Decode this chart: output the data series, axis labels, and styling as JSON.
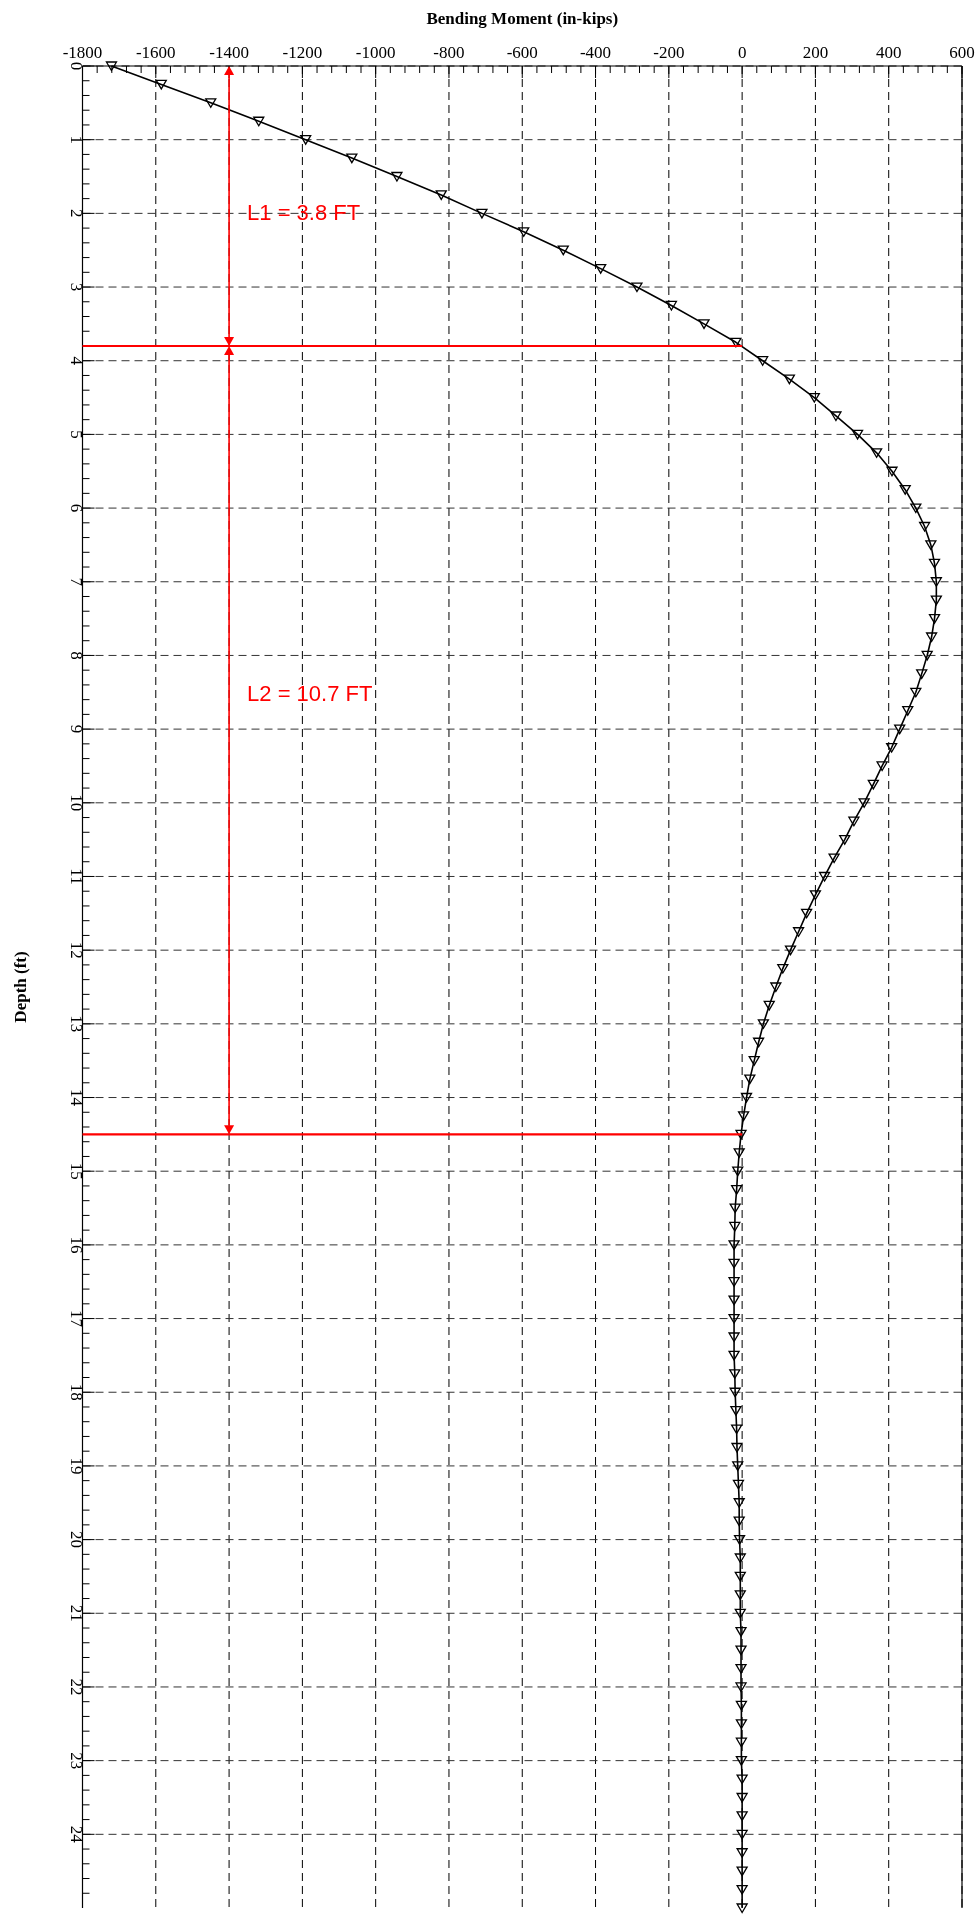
{
  "chart_data": {
    "type": "line",
    "xlabel": "Bending Moment (in-kips)",
    "ylabel": "Depth (ft)",
    "xlim": [
      -1800,
      600
    ],
    "xticks": [
      -1800,
      -1600,
      -1400,
      -1200,
      -1000,
      -800,
      -600,
      -400,
      -200,
      0,
      200,
      400,
      600
    ],
    "ylim": [
      25,
      0
    ],
    "yticks": [
      0,
      1,
      2,
      3,
      4,
      5,
      6,
      7,
      8,
      9,
      10,
      11,
      12,
      13,
      14,
      15,
      16,
      17,
      18,
      19,
      20,
      21,
      22,
      23,
      24
    ],
    "grid": true,
    "marker": "triangle",
    "line_style": "solid",
    "series": [
      {
        "color": "#000000",
        "x": [
          -1721,
          -1585,
          -1450,
          -1319,
          -1191,
          -1065,
          -942,
          -821,
          -710,
          -596,
          -488,
          -386,
          -287,
          -193,
          -104,
          -17,
          56,
          129,
          197,
          256,
          315,
          367,
          409,
          445,
          474,
          498,
          515,
          525,
          530,
          530,
          525,
          517,
          505,
          490,
          474,
          452,
          430,
          408,
          382,
          358,
          333,
          305,
          280,
          251,
          225,
          200,
          176,
          154,
          132,
          111,
          92,
          74,
          58,
          45,
          33,
          21,
          12,
          4,
          -3,
          -8,
          -12,
          -15,
          -19,
          -20,
          -22,
          -22,
          -22,
          -22,
          -22,
          -22,
          -22,
          -20,
          -19,
          -17,
          -15,
          -14,
          -12,
          -10,
          -8,
          -8,
          -7,
          -5,
          -5,
          -5,
          -5,
          -3,
          -3,
          -3,
          -3,
          -2,
          -2,
          -2,
          -2,
          0,
          0,
          0,
          0,
          0,
          0,
          0,
          0
        ],
        "values": [
          0,
          0.25,
          0.5,
          0.75,
          1,
          1.25,
          1.5,
          1.75,
          2,
          2.25,
          2.5,
          2.75,
          3,
          3.25,
          3.5,
          3.75,
          4,
          4.25,
          4.5,
          4.75,
          5,
          5.25,
          5.5,
          5.75,
          6,
          6.25,
          6.5,
          6.75,
          7,
          7.25,
          7.5,
          7.75,
          8,
          8.25,
          8.5,
          8.75,
          9,
          9.25,
          9.5,
          9.75,
          10,
          10.25,
          10.5,
          10.75,
          11,
          11.25,
          11.5,
          11.75,
          12,
          12.25,
          12.5,
          12.75,
          13,
          13.25,
          13.5,
          13.75,
          14,
          14.25,
          14.5,
          14.75,
          15,
          15.25,
          15.5,
          15.75,
          16,
          16.25,
          16.5,
          16.75,
          17,
          17.25,
          17.5,
          17.75,
          18,
          18.25,
          18.5,
          18.75,
          19,
          19.25,
          19.5,
          19.75,
          20,
          20.25,
          20.5,
          20.75,
          21,
          21.25,
          21.5,
          21.75,
          22,
          22.25,
          22.5,
          22.75,
          23,
          23.25,
          23.5,
          23.75,
          24,
          24.25,
          24.5,
          24.75,
          25
        ]
      }
    ],
    "ref_lines": [
      {
        "axis": "y",
        "value": 3.8,
        "color": "#ff0000"
      },
      {
        "axis": "y",
        "value": 14.5,
        "color": "#ff0000"
      }
    ],
    "annotations": [
      "L1 = 3.8 FT",
      "L2 = 10.7 FT"
    ]
  }
}
